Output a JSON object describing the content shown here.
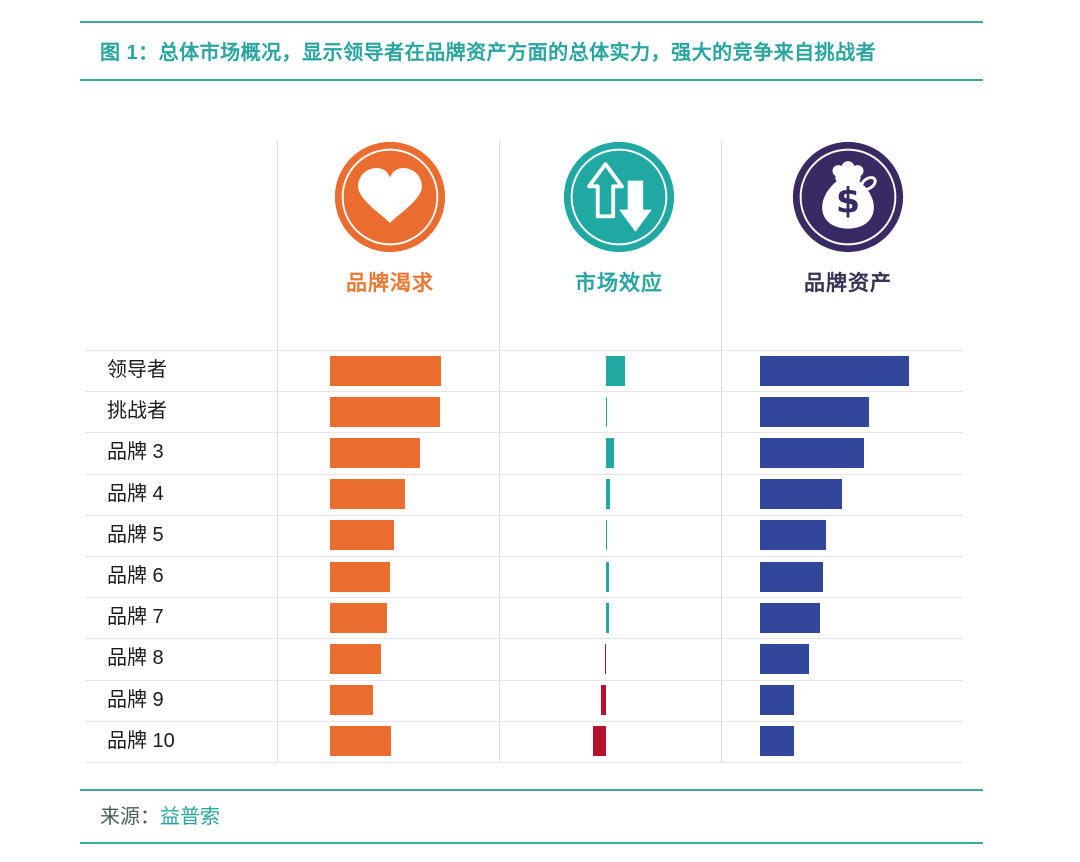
{
  "figure": {
    "title": "图 1：总体市场概况，显示领导者在品牌资产方面的总体实力，强大的竞争来自挑战者",
    "source_prefix": "来源：",
    "source_name": "益普索"
  },
  "columns": [
    {
      "id": "desire",
      "label": "品牌渴求",
      "icon": "heart-icon",
      "bar_color": "#eb6c2f",
      "label_color": "#e87a35"
    },
    {
      "id": "effect",
      "label": "市场效应",
      "icon": "up-down-arrows-icon",
      "bar_color": "#1fa9a2",
      "negative_bar_color": "#b5122d",
      "label_color": "#29a5a0"
    },
    {
      "id": "equity",
      "label": "品牌资产",
      "icon": "money-bag-icon",
      "bar_color": "#32479b",
      "label_color": "#3a3154"
    }
  ],
  "chart_data": {
    "type": "bar",
    "orientation": "horizontal",
    "title": "图 1：总体市场概况，显示领导者在品牌资产方面的总体实力，强大的竞争来自挑战者",
    "categories": [
      "领导者",
      "挑战者",
      "品牌 3",
      "品牌 4",
      "品牌 5",
      "品牌 6",
      "品牌 7",
      "品牌 8",
      "品牌 9",
      "品牌 10"
    ],
    "series": [
      {
        "name": "品牌渴求",
        "values": [
          100,
          99,
          81,
          68,
          58,
          54,
          51,
          46,
          39,
          55
        ]
      },
      {
        "name": "市场效应",
        "values": [
          100,
          2,
          42,
          21,
          5,
          16,
          16,
          -5,
          -26,
          -68
        ]
      },
      {
        "name": "品牌资产",
        "values": [
          100,
          73,
          70,
          55,
          44,
          42,
          40,
          33,
          23,
          23
        ]
      }
    ],
    "value_note": "no numeric axis shown; values are relative units normalized so each column's maximum = 100; negative 市场效应 values drawn left of baseline in red",
    "legend_position": "top (icon headers above each column)",
    "grid": "light row separator lines and vertical column divider lines",
    "source": "来源：益普索"
  },
  "colors": {
    "accent_teal": "#1fa9a2",
    "accent_orange": "#eb6c2f",
    "accent_blue": "#32479b",
    "accent_red": "#b5122d",
    "accent_purple": "#3a2a63",
    "rule_teal": "#3fa8a2",
    "grid_gray": "#e7e7e7",
    "text_dark": "#1b1b1b"
  }
}
